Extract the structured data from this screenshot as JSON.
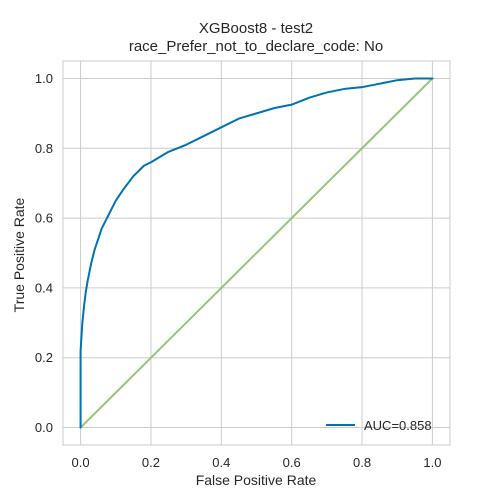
{
  "chart_data": {
    "type": "line",
    "title": [
      "XGBoost8 - test2",
      "race_Prefer_not_to_declare_code: No"
    ],
    "xlabel": "False Positive Rate",
    "ylabel": "True Positive Rate",
    "xlim": [
      -0.05,
      1.05
    ],
    "ylim": [
      -0.05,
      1.05
    ],
    "xticks": [
      0.0,
      0.2,
      0.4,
      0.6,
      0.8,
      1.0
    ],
    "yticks": [
      0.0,
      0.2,
      0.4,
      0.6,
      0.8,
      1.0
    ],
    "xtick_labels": [
      "0.0",
      "0.2",
      "0.4",
      "0.6",
      "0.8",
      "1.0"
    ],
    "ytick_labels": [
      "0.0",
      "0.2",
      "0.4",
      "0.6",
      "0.8",
      "1.0"
    ],
    "grid": true,
    "legend_position": "bottom-right",
    "series": [
      {
        "name": "AUC=0.858",
        "color": "#0072b2",
        "x": [
          0.0,
          0.0,
          0.005,
          0.01,
          0.015,
          0.02,
          0.03,
          0.04,
          0.05,
          0.06,
          0.08,
          0.1,
          0.12,
          0.15,
          0.18,
          0.2,
          0.25,
          0.3,
          0.35,
          0.4,
          0.45,
          0.5,
          0.55,
          0.6,
          0.65,
          0.7,
          0.75,
          0.8,
          0.85,
          0.9,
          0.95,
          1.0
        ],
        "y": [
          0.0,
          0.22,
          0.3,
          0.35,
          0.39,
          0.42,
          0.47,
          0.51,
          0.54,
          0.57,
          0.61,
          0.65,
          0.68,
          0.72,
          0.75,
          0.76,
          0.79,
          0.81,
          0.835,
          0.86,
          0.885,
          0.9,
          0.915,
          0.925,
          0.945,
          0.96,
          0.97,
          0.975,
          0.985,
          0.995,
          1.0,
          1.0
        ]
      },
      {
        "name": "",
        "color": "#95c47a",
        "x": [
          0.0,
          1.0
        ],
        "y": [
          0.0,
          1.0
        ]
      }
    ]
  }
}
